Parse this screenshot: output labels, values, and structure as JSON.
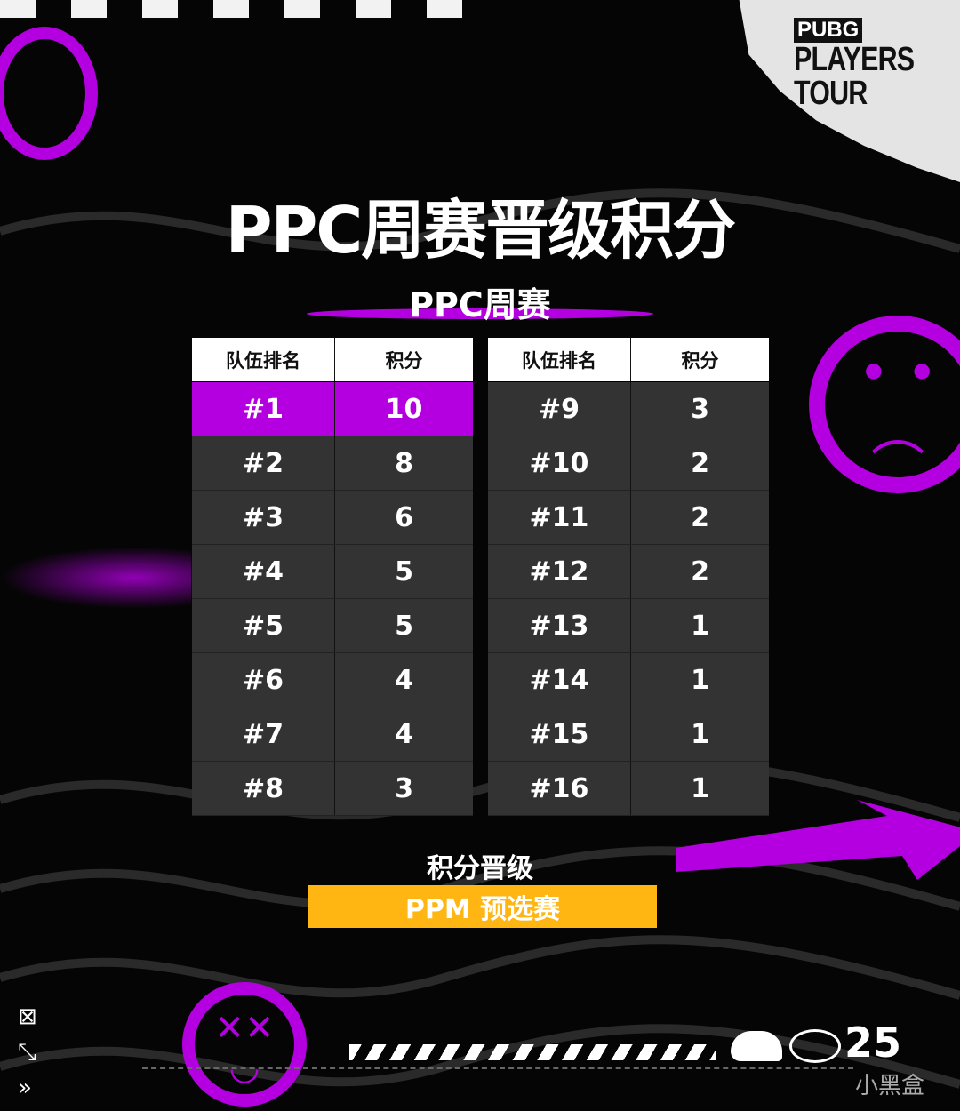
{
  "logo": {
    "line1": "PUBG",
    "line2": "PLAYERS",
    "line3": "TOUR"
  },
  "title": "PPC周赛晋级积分",
  "subtitle": "PPC周赛",
  "table": {
    "headers": [
      "队伍排名",
      "积分"
    ],
    "left": [
      {
        "rank": "#1",
        "points": "10"
      },
      {
        "rank": "#2",
        "points": "8"
      },
      {
        "rank": "#3",
        "points": "6"
      },
      {
        "rank": "#4",
        "points": "5"
      },
      {
        "rank": "#5",
        "points": "5"
      },
      {
        "rank": "#6",
        "points": "4"
      },
      {
        "rank": "#7",
        "points": "4"
      },
      {
        "rank": "#8",
        "points": "3"
      }
    ],
    "right": [
      {
        "rank": "#9",
        "points": "3"
      },
      {
        "rank": "#10",
        "points": "2"
      },
      {
        "rank": "#11",
        "points": "2"
      },
      {
        "rank": "#12",
        "points": "2"
      },
      {
        "rank": "#13",
        "points": "1"
      },
      {
        "rank": "#14",
        "points": "1"
      },
      {
        "rank": "#15",
        "points": "1"
      },
      {
        "rank": "#16",
        "points": "1"
      }
    ]
  },
  "promotion": {
    "label": "积分晋级",
    "target": "PPM 预选赛"
  },
  "footer": {
    "year": "25",
    "watermark": "小黑盒"
  },
  "colors": {
    "accent": "#b400e0",
    "highlight": "#ffb612",
    "cell": "#333333"
  }
}
